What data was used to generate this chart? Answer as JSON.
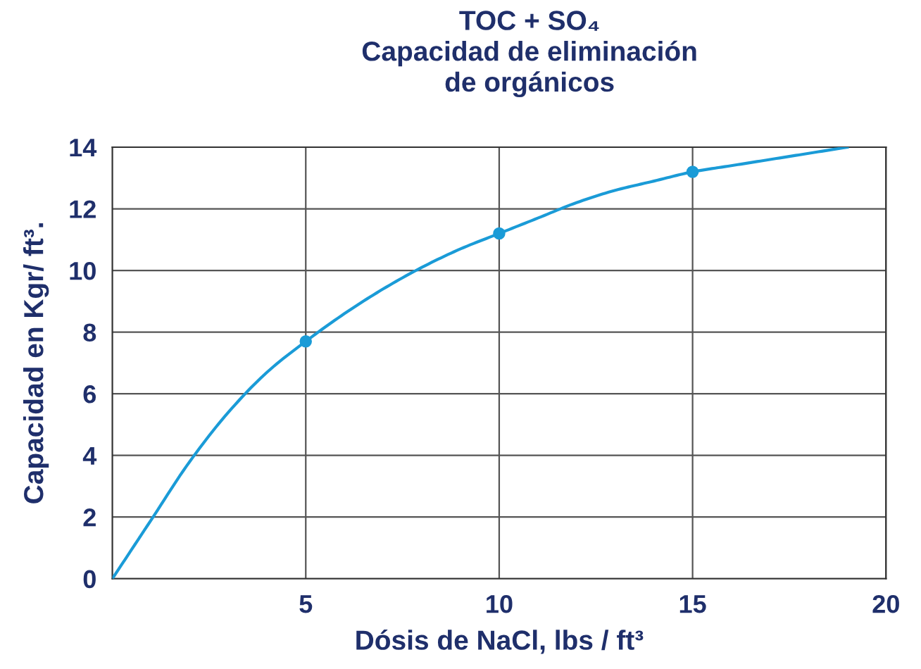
{
  "chart_data": {
    "type": "line",
    "title": "TOC + SO₄\nCapacidad de eliminación\nde orgánicos",
    "xlabel": "Dósis de NaCl, lbs / ft³",
    "ylabel": "Capacidad en Kgr/ ft³.",
    "series": [
      {
        "color": "#1a9bd7",
        "x": [
          0,
          1,
          2,
          3,
          4,
          5,
          6,
          7,
          8,
          9,
          10,
          11,
          12,
          13,
          14,
          15,
          16,
          17,
          18,
          19
        ],
        "values": [
          0,
          1.9,
          3.8,
          5.4,
          6.7,
          7.7,
          8.6,
          9.4,
          10.1,
          10.7,
          11.2,
          11.7,
          12.2,
          12.6,
          12.9,
          13.2,
          13.4,
          13.6,
          13.8,
          14
        ]
      },
      {
        "type": "scatter",
        "color": "#1a9bd7",
        "x": [
          5,
          10,
          15
        ],
        "values": [
          7.7,
          11.2,
          13.2
        ],
        "marker": "circle"
      }
    ],
    "xlim": [
      0,
      20
    ],
    "xticks": [
      5,
      10,
      15,
      20
    ],
    "ylim": [
      0,
      14
    ],
    "yticks": [
      0,
      2,
      4,
      6,
      8,
      10,
      12,
      14
    ],
    "grid": true
  }
}
